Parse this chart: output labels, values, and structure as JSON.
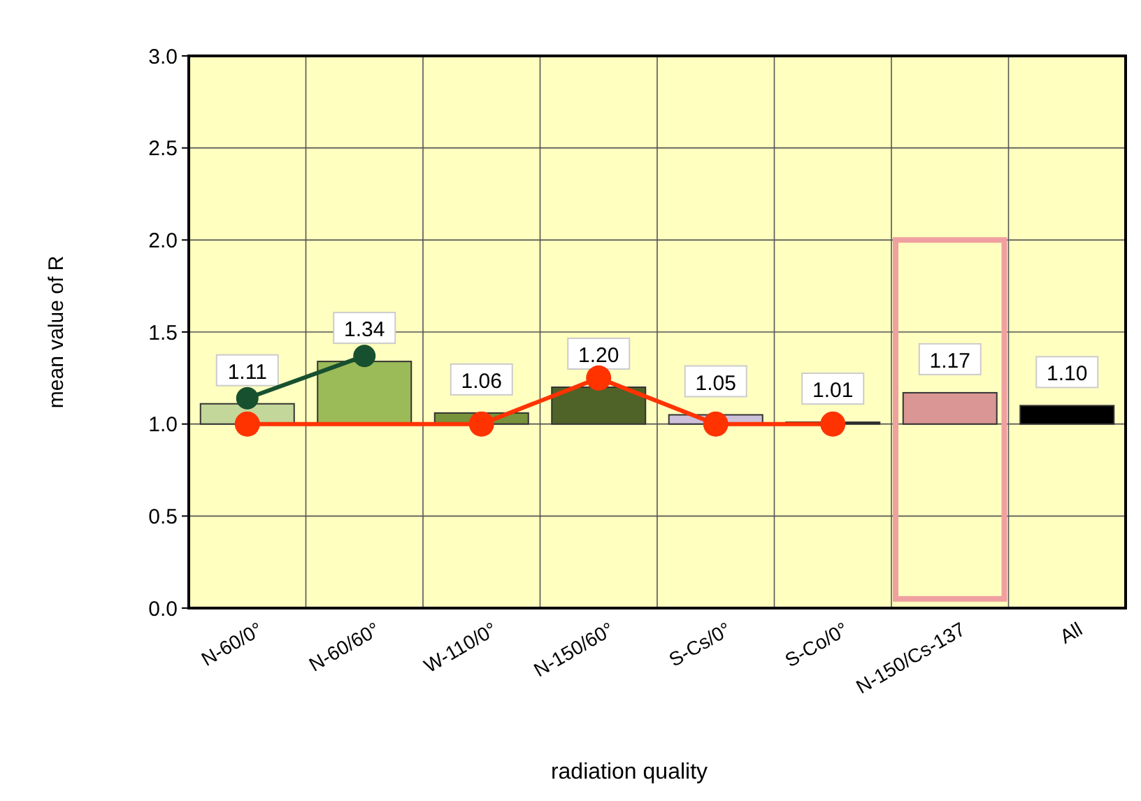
{
  "chart_data": {
    "type": "bar",
    "xlabel": "radiation quality",
    "ylabel": "mean value of  R",
    "categories": [
      "N-60/0°",
      "N-60/60°",
      "W-110/0°",
      "N-150/60°",
      "S-Cs/0°",
      "S-Co/0°",
      "N-150/Cs-137",
      "All"
    ],
    "ylim": [
      0,
      3
    ],
    "yticks": [
      {
        "value": 0,
        "label": "0.0"
      },
      {
        "value": 0.5,
        "label": "0.5"
      },
      {
        "value": 1,
        "label": "1.0"
      },
      {
        "value": 1.5,
        "label": "1.5"
      },
      {
        "value": 2,
        "label": "2.0"
      },
      {
        "value": 2.5,
        "label": "2.5"
      },
      {
        "value": 3,
        "label": "3.0"
      }
    ],
    "grid": true,
    "marker": "circle",
    "series": [
      {
        "values": [
          0.11,
          0.34,
          0.06,
          0.2,
          0.05,
          0.01,
          0.17,
          0.1
        ],
        "base": [
          1,
          1,
          1,
          1,
          1,
          1,
          1,
          1
        ],
        "value_labels": [
          "1.11",
          "1.34",
          "1.06",
          "1.20",
          "1.05",
          "1.01",
          "1.17",
          "1.10"
        ],
        "colors": [
          "#c4d79b",
          "#9bbb59",
          "#77933c",
          "#4f6228",
          "#ccc0da",
          "#1f1f1f",
          "#da9694",
          "#000000"
        ]
      },
      {
        "type": "line",
        "color": "#17502f",
        "x": [
          "N-60/0°",
          "N-60/60°"
        ],
        "values": [
          1.14,
          1.37
        ]
      },
      {
        "type": "line",
        "color": "#ff3300",
        "x": [
          "N-60/0°",
          "W-110/0°",
          "N-150/60°",
          "S-Cs/0°",
          "S-Co/0°"
        ],
        "values": [
          1.0,
          1.0,
          1.25,
          1.0,
          1.0
        ]
      }
    ]
  }
}
